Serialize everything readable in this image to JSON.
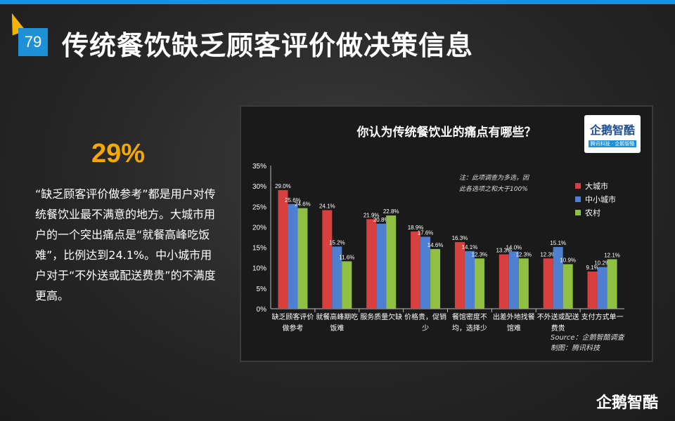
{
  "slide": {
    "page_number": "79",
    "title": "传统餐饮缺乏顾客评价做决策信息",
    "highlight_value": "29%",
    "description": "“缺乏顾客评价做参考”都是用户对传统餐饮业最不满意的地方。大城市用户的一个突出痛点是“就餐高峰吃饭难”，比例达到24.1%。中小城市用户对于“不外送或配送费贵”的不满度更高。",
    "brand_logo_text": "企鹅智酷"
  },
  "colors": {
    "accent_blue": "#1e90d8",
    "highlight_orange": "#f5a800",
    "series_big_city": "#d84040",
    "series_small_city": "#4f7fd0",
    "series_rural": "#8fc044"
  },
  "chart_data": {
    "type": "bar",
    "title": "你认为传统餐饮业的痛点有哪些？",
    "note": [
      "注：此项调查为多选，因",
      "此各选项之和大于100%"
    ],
    "source": [
      "Source：企鹅智酷调查",
      "制图：腾讯科技"
    ],
    "logo": {
      "name": "企鹅智酷",
      "tagline": "腾讯科技 · 企鹅智酷"
    },
    "yticks": [
      "35%",
      "30%",
      "25%",
      "20%",
      "15%",
      "10%",
      "5%",
      "0%"
    ],
    "ylim": [
      0,
      35
    ],
    "categories": [
      [
        "缺乏顾客评价",
        "做参考"
      ],
      [
        "就餐高峰期吃",
        "饭难"
      ],
      [
        "服务质量欠缺"
      ],
      [
        "价格贵，促销",
        "少"
      ],
      [
        "餐馆密度不",
        "均，选择少"
      ],
      [
        "出差外地找餐",
        "馆难"
      ],
      [
        "不外送或配送",
        "费贵"
      ],
      [
        "支付方式单一"
      ]
    ],
    "series": [
      {
        "name": "大城市",
        "values": [
          29.0,
          24.1,
          21.9,
          18.9,
          16.3,
          13.3,
          12.3,
          9.1
        ],
        "labels": [
          "29.0%",
          "24.1%",
          "21.9%",
          "18.9%",
          "16.3%",
          "13.3%",
          "12.3%",
          "9.1%"
        ]
      },
      {
        "name": "中小城市",
        "values": [
          25.6,
          15.2,
          20.8,
          17.6,
          14.1,
          14.0,
          15.1,
          10.2
        ],
        "labels": [
          "25.6%",
          "15.2%",
          "20.8%",
          "17.6%",
          "14.1%",
          "14.0%",
          "15.1%",
          "10.2%"
        ]
      },
      {
        "name": "农村",
        "values": [
          24.6,
          11.6,
          22.8,
          14.6,
          12.3,
          12.3,
          10.9,
          12.1
        ],
        "labels": [
          "24.6%",
          "11.6%",
          "22.8%",
          "14.6%",
          "12.3%",
          "12.3%",
          "10.9%",
          "12.1%"
        ]
      }
    ],
    "legend_position": "top-right",
    "grid": false
  }
}
